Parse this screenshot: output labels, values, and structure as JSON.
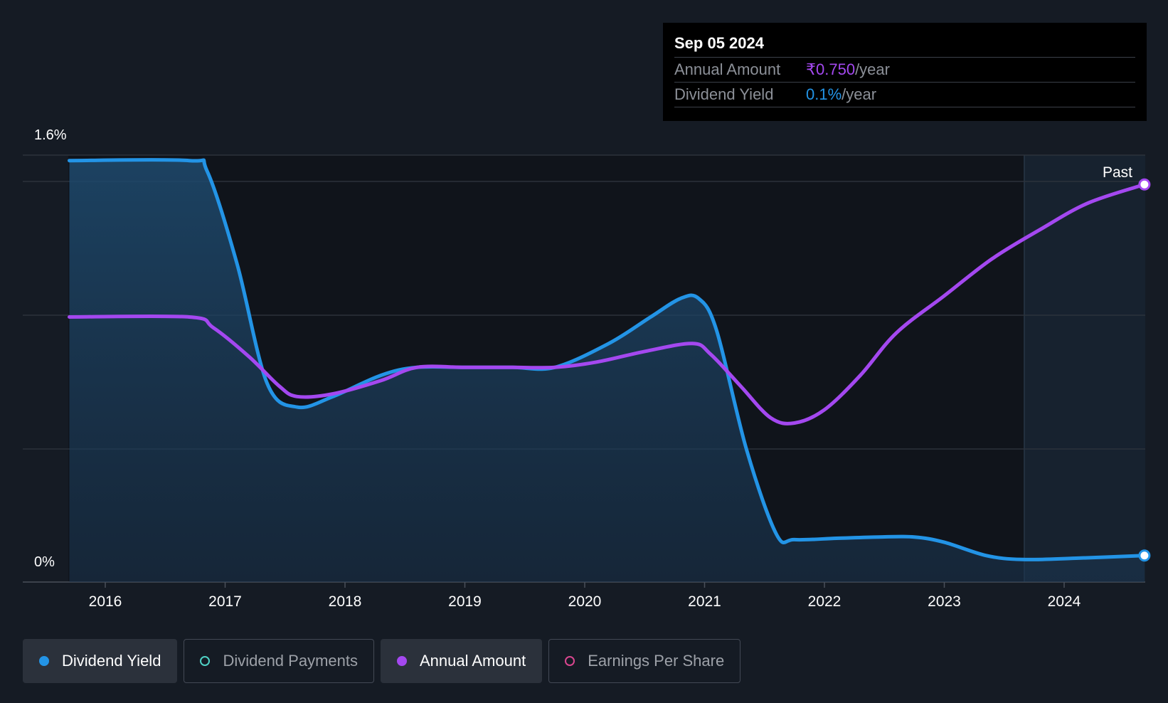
{
  "chart_data": {
    "type": "line",
    "ylabel_ticks": [
      "1.6%",
      "0%"
    ],
    "ylim": [
      0,
      1.6
    ],
    "x_ticks": [
      "2016",
      "2017",
      "2018",
      "2019",
      "2020",
      "2021",
      "2022",
      "2023",
      "2024"
    ],
    "forecast_label": "Past",
    "series": [
      {
        "name": "Dividend Yield",
        "color": "#2394e6",
        "area": true,
        "points": [
          [
            2015.7,
            1.59
          ],
          [
            2016.7,
            1.59
          ],
          [
            2016.85,
            1.55
          ],
          [
            2017.1,
            1.2
          ],
          [
            2017.35,
            0.75
          ],
          [
            2017.6,
            0.66
          ],
          [
            2017.9,
            0.7
          ],
          [
            2018.3,
            0.78
          ],
          [
            2018.6,
            0.81
          ],
          [
            2019.0,
            0.81
          ],
          [
            2019.4,
            0.81
          ],
          [
            2019.75,
            0.81
          ],
          [
            2020.2,
            0.9
          ],
          [
            2020.55,
            1.0
          ],
          [
            2020.8,
            1.07
          ],
          [
            2020.95,
            1.07
          ],
          [
            2021.1,
            0.95
          ],
          [
            2021.35,
            0.5
          ],
          [
            2021.6,
            0.18
          ],
          [
            2021.75,
            0.16
          ],
          [
            2022.1,
            0.165
          ],
          [
            2022.45,
            0.17
          ],
          [
            2022.75,
            0.17
          ],
          [
            2023.0,
            0.15
          ],
          [
            2023.35,
            0.1
          ],
          [
            2023.65,
            0.085
          ],
          [
            2024.1,
            0.09
          ],
          [
            2024.67,
            0.1
          ]
        ]
      },
      {
        "name": "Annual Amount",
        "color": "#a448f0",
        "area": false,
        "points": [
          [
            2015.7,
            1.0
          ],
          [
            2016.7,
            1.0
          ],
          [
            2016.9,
            0.96
          ],
          [
            2017.2,
            0.85
          ],
          [
            2017.45,
            0.74
          ],
          [
            2017.6,
            0.7
          ],
          [
            2017.9,
            0.71
          ],
          [
            2018.3,
            0.76
          ],
          [
            2018.6,
            0.81
          ],
          [
            2019.0,
            0.81
          ],
          [
            2019.4,
            0.81
          ],
          [
            2019.75,
            0.81
          ],
          [
            2020.1,
            0.83
          ],
          [
            2020.5,
            0.87
          ],
          [
            2020.9,
            0.9
          ],
          [
            2021.05,
            0.86
          ],
          [
            2021.3,
            0.74
          ],
          [
            2021.55,
            0.62
          ],
          [
            2021.75,
            0.6
          ],
          [
            2022.0,
            0.65
          ],
          [
            2022.3,
            0.78
          ],
          [
            2022.6,
            0.94
          ],
          [
            2023.0,
            1.08
          ],
          [
            2023.4,
            1.22
          ],
          [
            2023.8,
            1.33
          ],
          [
            2024.2,
            1.43
          ],
          [
            2024.67,
            1.5
          ]
        ]
      }
    ]
  },
  "tooltip": {
    "date": "Sep 05 2024",
    "rows": [
      {
        "label": "Annual Amount",
        "value": "₹0.750",
        "unit": "/year",
        "color": "#a448f0"
      },
      {
        "label": "Dividend Yield",
        "value": "0.1%",
        "unit": "/year",
        "color": "#2394e6"
      }
    ]
  },
  "legend": [
    {
      "label": "Dividend Yield",
      "color": "#2394e6",
      "filled": true,
      "active": true
    },
    {
      "label": "Dividend Payments",
      "color": "#4fd1c5",
      "filled": false,
      "active": false
    },
    {
      "label": "Annual Amount",
      "color": "#a448f0",
      "filled": true,
      "active": true
    },
    {
      "label": "Earnings Per Share",
      "color": "#d9468f",
      "filled": false,
      "active": false
    }
  ]
}
